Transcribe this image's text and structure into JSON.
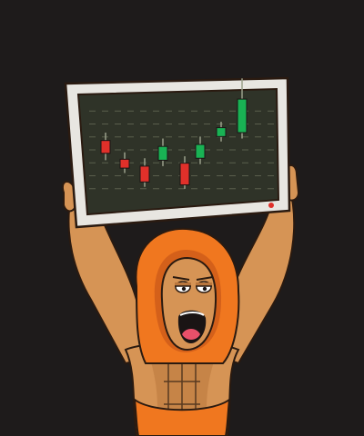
{
  "scene": {
    "colors": {
      "background": "#1e1b1b",
      "hood": "#f0771f",
      "hood_dark": "#d4601a",
      "skin": "#d69455",
      "skin_shadow": "#b9763d",
      "screen_frame": "#e8e6e1",
      "screen_bg": "#2f3328",
      "grid_line": "#5a5f4c",
      "candle_up": "#19b254",
      "candle_down": "#e0302a",
      "mouth": "#1a1414",
      "tongue": "#e8506a",
      "led": "#e0302a",
      "outline": "#2a1a10"
    }
  },
  "chart_data": {
    "type": "candlestick",
    "candles": [
      {
        "open": 6.2,
        "close": 4.9,
        "high": 7.0,
        "low": 4.2
      },
      {
        "open": 4.3,
        "close": 3.4,
        "high": 5.0,
        "low": 2.9
      },
      {
        "open": 3.6,
        "close": 2.0,
        "high": 4.4,
        "low": 1.5
      },
      {
        "open": 4.2,
        "close": 5.6,
        "high": 6.4,
        "low": 3.6
      },
      {
        "open": 3.9,
        "close": 1.7,
        "high": 4.6,
        "low": 1.3
      },
      {
        "open": 4.4,
        "close": 5.8,
        "high": 6.6,
        "low": 3.8
      },
      {
        "open": 6.6,
        "close": 7.5,
        "high": 8.1,
        "low": 6.1
      },
      {
        "open": 7.0,
        "close": 10.4,
        "high": 12.5,
        "low": 6.4
      }
    ],
    "ylim": [
      0,
      10.5
    ],
    "grid": true
  }
}
